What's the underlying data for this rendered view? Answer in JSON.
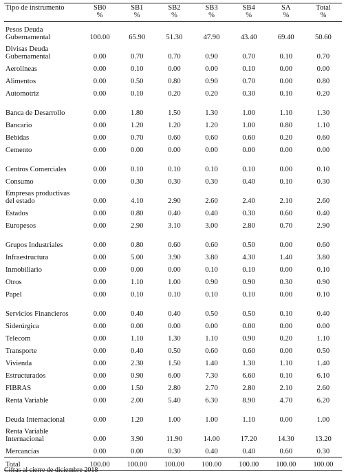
{
  "header": {
    "tipo": "Tipo de instrumento",
    "cols": [
      {
        "name": "SB0",
        "unit": "%"
      },
      {
        "name": "SB1",
        "unit": "%"
      },
      {
        "name": "SB2",
        "unit": "%"
      },
      {
        "name": "SB3",
        "unit": "%"
      },
      {
        "name": "SB4",
        "unit": "%"
      },
      {
        "name": "SA",
        "unit": "%"
      },
      {
        "name": "Total",
        "unit": "%"
      }
    ]
  },
  "rows": [
    {
      "label": "Pesos Deuda Gubernamental",
      "values": [
        "100.00",
        "65.90",
        "51.30",
        "47.90",
        "43.40",
        "69.40",
        "50.60"
      ]
    },
    {
      "label": "Divisas Deuda Gubernamental",
      "values": [
        "0.00",
        "0.70",
        "0.70",
        "0.90",
        "0.70",
        "0.10",
        "0.70"
      ]
    },
    {
      "label": "Aerolíneas",
      "values": [
        "0.00",
        "0.10",
        "0.00",
        "0.00",
        "0.10",
        "0.00",
        "0.00"
      ]
    },
    {
      "label": "Alimentos",
      "values": [
        "0.00",
        "0.50",
        "0.80",
        "0.90",
        "0.70",
        "0.00",
        "0.80"
      ]
    },
    {
      "label": "Automotriz",
      "values": [
        "0.00",
        "0.10",
        "0.20",
        "0.20",
        "0.30",
        "0.10",
        "0.20"
      ]
    },
    {
      "label": "Banca de Desarrollo",
      "values": [
        "0.00",
        "1.80",
        "1.50",
        "1.30",
        "1.00",
        "1.10",
        "1.30"
      ]
    },
    {
      "label": "Bancario",
      "values": [
        "0.00",
        "1.20",
        "1.20",
        "1.20",
        "1.00",
        "0.80",
        "1.10"
      ]
    },
    {
      "label": "Bebidas",
      "values": [
        "0.00",
        "0.70",
        "0.60",
        "0.60",
        "0.60",
        "0.20",
        "0.60"
      ]
    },
    {
      "label": "Cemento",
      "values": [
        "0.00",
        "0.00",
        "0.00",
        "0.00",
        "0.00",
        "0.00",
        "0.00"
      ]
    },
    {
      "label": "Centros Comerciales",
      "values": [
        "0.00",
        "0.10",
        "0.10",
        "0.10",
        "0.10",
        "0.00",
        "0.10"
      ]
    },
    {
      "label": "Consumo",
      "values": [
        "0.00",
        "0.30",
        "0.30",
        "0.30",
        "0.40",
        "0.10",
        "0.30"
      ]
    },
    {
      "label": "Empresas productivas del estado",
      "values": [
        "0.00",
        "4.10",
        "2.90",
        "2.60",
        "2.40",
        "2.10",
        "2.60"
      ]
    },
    {
      "label": "Estados",
      "values": [
        "0.00",
        "0.80",
        "0.40",
        "0.40",
        "0.30",
        "0.60",
        "0.40"
      ]
    },
    {
      "label": "Europesos",
      "values": [
        "0.00",
        "2.90",
        "3.10",
        "3.00",
        "2.80",
        "0.70",
        "2.90"
      ]
    },
    {
      "label": "Grupos Industriales",
      "values": [
        "0.00",
        "0.80",
        "0.60",
        "0.60",
        "0.50",
        "0.00",
        "0.60"
      ]
    },
    {
      "label": "Infraestructura",
      "values": [
        "0.00",
        "5.00",
        "3.90",
        "3.80",
        "4.30",
        "1.40",
        "3.80"
      ]
    },
    {
      "label": "Inmobiliario",
      "values": [
        "0.00",
        "0.00",
        "0.00",
        "0.10",
        "0.10",
        "0.00",
        "0.10"
      ]
    },
    {
      "label": "Otros",
      "values": [
        "0.00",
        "1.10",
        "1.00",
        "0.90",
        "0.90",
        "0.30",
        "0.90"
      ]
    },
    {
      "label": "Papel",
      "values": [
        "0.00",
        "0.10",
        "0.10",
        "0.10",
        "0.10",
        "0.00",
        "0.10"
      ]
    },
    {
      "label": "Servicios Financieros",
      "values": [
        "0.00",
        "0.40",
        "0.40",
        "0.50",
        "0.50",
        "0.10",
        "0.40"
      ]
    },
    {
      "label": "Siderúrgica",
      "values": [
        "0.00",
        "0.00",
        "0.00",
        "0.00",
        "0.00",
        "0.00",
        "0.00"
      ]
    },
    {
      "label": "Telecom",
      "values": [
        "0.00",
        "1.10",
        "1.30",
        "1.10",
        "0.90",
        "0.20",
        "1.10"
      ]
    },
    {
      "label": "Transporte",
      "values": [
        "0.00",
        "0.40",
        "0.50",
        "0.60",
        "0.60",
        "0.00",
        "0.50"
      ]
    },
    {
      "label": "Vivienda",
      "values": [
        "0.00",
        "2.30",
        "1.50",
        "1.40",
        "1.30",
        "1.10",
        "1.40"
      ]
    },
    {
      "label": "Estructurados",
      "values": [
        "0.00",
        "0.90",
        "6.00",
        "7.30",
        "6.60",
        "0.10",
        "6.10"
      ]
    },
    {
      "label": "FIBRAS",
      "values": [
        "0.00",
        "1.50",
        "2.80",
        "2.70",
        "2.80",
        "2.10",
        "2.60"
      ]
    },
    {
      "label": "Renta Variable",
      "values": [
        "0.00",
        "2.00",
        "5.40",
        "6.30",
        "8.90",
        "4.70",
        "6.20"
      ]
    },
    {
      "label": "Deuda Internacional",
      "values": [
        "0.00",
        "1.20",
        "1.00",
        "1.00",
        "1.10",
        "0.00",
        "1.00"
      ]
    },
    {
      "label": "Renta Variable Internacional",
      "values": [
        "0.00",
        "3.90",
        "11.90",
        "14.00",
        "17.20",
        "14.30",
        "13.20"
      ]
    },
    {
      "label": "Mercancías",
      "values": [
        "0.00",
        "0.00",
        "0.30",
        "0.40",
        "0.40",
        "0.60",
        "0.30"
      ]
    }
  ],
  "total": {
    "label": "Total",
    "values": [
      "100.00",
      "100.00",
      "100.00",
      "100.00",
      "100.00",
      "100.00",
      "100.00"
    ]
  },
  "footnote": "Cifras al cierre de diciembre 2018"
}
